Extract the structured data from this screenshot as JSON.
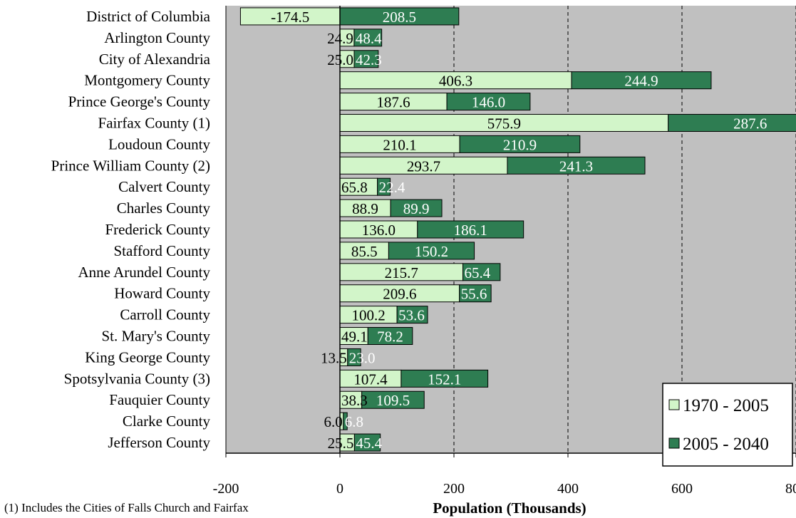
{
  "chart_data": {
    "type": "bar",
    "orientation": "horizontal",
    "stacked": true,
    "xlabel": "Population (Thousands)",
    "xlim": [
      -200,
      800
    ],
    "xticks": [
      -200,
      0,
      200,
      400,
      600,
      800
    ],
    "xtick_labels": [
      "-200",
      "0",
      "200",
      "400",
      "600",
      "800"
    ],
    "grid": "vertical dashed",
    "legend_position": "bottom-right",
    "categories": [
      "District of Columbia",
      "Arlington County",
      "City of Alexandria",
      "Montgomery County",
      "Prince George's County",
      "Fairfax County (1)",
      "Loudoun County",
      "Prince William County (2)",
      "Calvert County",
      "Charles County",
      "Frederick County",
      "Stafford County",
      "Anne Arundel County",
      "Howard County",
      "Carroll County",
      "St. Mary's County",
      "King George County",
      "Spotsylvania County (3)",
      "Fauquier County",
      "Clarke County",
      "Jefferson County"
    ],
    "series": [
      {
        "name": "1970 - 2005",
        "color": "#d2f5c9",
        "values": [
          -174.5,
          24.9,
          25.0,
          406.3,
          187.6,
          575.9,
          210.1,
          293.7,
          65.8,
          88.9,
          136.0,
          85.5,
          215.7,
          209.6,
          100.2,
          49.1,
          13.5,
          107.4,
          38.3,
          6.0,
          25.5
        ],
        "labels": [
          "-174.5",
          "24.9",
          "25.0",
          "406.3",
          "187.6",
          "575.9",
          "210.1",
          "293.7",
          "65.8",
          "88.9",
          "136.0",
          "85.5",
          "215.7",
          "209.6",
          "100.2",
          "49.1",
          "13.5",
          "107.4",
          "38.3",
          "6.0",
          "25.5"
        ]
      },
      {
        "name": "2005 - 2040",
        "color": "#2e7d52",
        "values": [
          208.5,
          48.4,
          42.3,
          244.9,
          146.0,
          287.6,
          210.9,
          241.3,
          22.4,
          89.9,
          186.1,
          150.2,
          65.4,
          55.6,
          53.6,
          78.2,
          23.0,
          152.1,
          109.5,
          6.8,
          45.4
        ],
        "labels": [
          "208.5",
          "48.4",
          "42.3",
          "244.9",
          "146.0",
          "287.6",
          "210.9",
          "241.3",
          "22.4",
          "89.9",
          "186.1",
          "150.2",
          "65.4",
          "55.6",
          "53.6",
          "78.2",
          "23.0",
          "152.1",
          "109.5",
          "6.8",
          "45.4"
        ]
      }
    ],
    "plot_background": "#c0c0c0"
  },
  "footnote": "(1) Includes the Cities of Falls Church and Fairfax"
}
